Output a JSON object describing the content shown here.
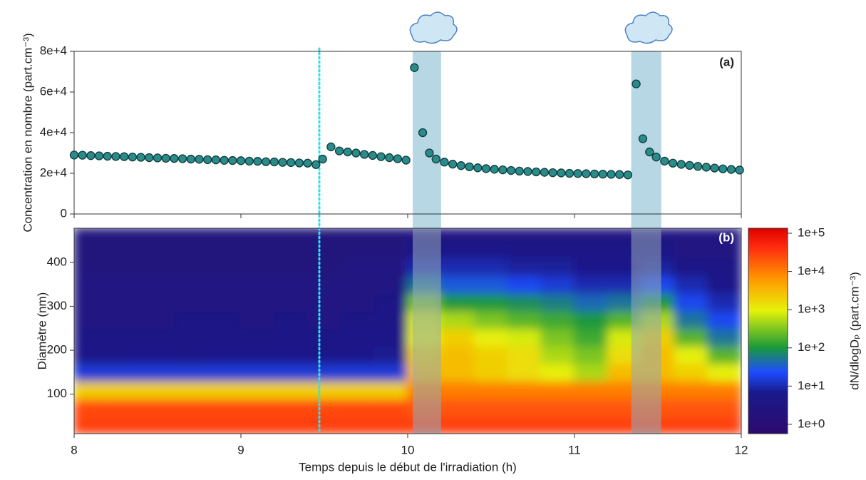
{
  "chart_data": [
    {
      "type": "scatter",
      "panel_label": "(a)",
      "ylabel": "Concentration en nombre (part.cm⁻³)",
      "xlim": [
        8,
        12
      ],
      "xticks": [
        8,
        9,
        10,
        11,
        12
      ],
      "ylim": [
        0,
        80000
      ],
      "yticks": [
        0,
        {
          "value": 20000,
          "label": "2e+4"
        },
        {
          "value": 40000,
          "label": "4e+4"
        },
        {
          "value": 60000,
          "label": "6e+4"
        },
        {
          "value": 80000,
          "label": "8e+4"
        }
      ],
      "color": "#2b8b8b",
      "x": [
        8.0,
        8.05,
        8.1,
        8.15,
        8.2,
        8.25,
        8.3,
        8.35,
        8.4,
        8.45,
        8.5,
        8.55,
        8.6,
        8.65,
        8.7,
        8.75,
        8.8,
        8.85,
        8.9,
        8.95,
        9.0,
        9.05,
        9.1,
        9.15,
        9.2,
        9.25,
        9.3,
        9.35,
        9.4,
        9.45,
        9.49,
        9.54,
        9.59,
        9.64,
        9.69,
        9.74,
        9.79,
        9.84,
        9.89,
        9.94,
        9.99,
        10.04,
        10.09,
        10.13,
        10.17,
        10.22,
        10.27,
        10.32,
        10.37,
        10.42,
        10.47,
        10.52,
        10.57,
        10.62,
        10.67,
        10.72,
        10.77,
        10.82,
        10.87,
        10.92,
        10.97,
        11.02,
        11.07,
        11.12,
        11.17,
        11.22,
        11.27,
        11.32,
        11.37,
        11.41,
        11.45,
        11.49,
        11.54,
        11.59,
        11.64,
        11.69,
        11.74,
        11.79,
        11.84,
        11.89,
        11.94,
        11.99
      ],
      "values": [
        29000,
        28900,
        28700,
        28600,
        28400,
        28300,
        28200,
        28000,
        27900,
        27700,
        27600,
        27400,
        27300,
        27200,
        27000,
        26900,
        26700,
        26600,
        26400,
        26300,
        26200,
        26000,
        25900,
        25700,
        25600,
        25400,
        25300,
        25100,
        25000,
        24300,
        27000,
        33000,
        31000,
        30500,
        30000,
        29300,
        28800,
        28200,
        27700,
        27200,
        26500,
        72000,
        40000,
        30000,
        27000,
        25500,
        24500,
        23800,
        23200,
        22700,
        22300,
        22000,
        21700,
        21400,
        21100,
        20900,
        20700,
        20500,
        20300,
        20200,
        20000,
        19900,
        19800,
        19700,
        19600,
        19500,
        19400,
        19200,
        64000,
        37000,
        30500,
        28000,
        26000,
        25000,
        24400,
        23900,
        23400,
        23000,
        22600,
        22200,
        21900,
        21600
      ],
      "vline": 9.47,
      "shaded_spans": [
        [
          10.03,
          10.2
        ],
        [
          11.34,
          11.52
        ]
      ]
    },
    {
      "type": "heatmap",
      "panel_label": "(b)",
      "xlabel": "Temps depuis le début de l'irradiation (h)",
      "ylabel": "Diamètre (nm)",
      "xlim": [
        8,
        12
      ],
      "xticks": [
        8,
        9,
        10,
        11,
        12
      ],
      "ylim": [
        10,
        478
      ],
      "yticks": [
        100,
        200,
        300,
        400
      ],
      "x_edges": [
        8.0,
        8.2,
        8.4,
        8.6,
        8.8,
        9.0,
        9.2,
        9.4,
        9.6,
        9.8,
        10.0,
        10.2,
        10.4,
        10.6,
        10.8,
        11.0,
        11.2,
        11.4,
        11.6,
        11.8,
        12.0
      ],
      "y_edges": [
        10,
        50,
        90,
        130,
        170,
        210,
        250,
        290,
        330,
        370,
        410,
        450,
        478
      ],
      "z": [
        [
          30000,
          25000,
          2000,
          15,
          5,
          4,
          3,
          3,
          3,
          2,
          2,
          2
        ],
        [
          30000,
          25000,
          2000,
          15,
          5,
          4,
          3,
          3,
          3,
          2,
          2,
          2
        ],
        [
          30000,
          25000,
          2000,
          15,
          6,
          4,
          3,
          3,
          3,
          2,
          2,
          2
        ],
        [
          30000,
          25000,
          2000,
          15,
          5,
          4,
          4,
          3,
          3,
          2,
          2,
          2
        ],
        [
          30000,
          25000,
          2000,
          15,
          6,
          5,
          4,
          3,
          3,
          2,
          2,
          2
        ],
        [
          30000,
          25000,
          2000,
          15,
          6,
          4,
          3,
          3,
          3,
          2,
          2,
          2
        ],
        [
          30000,
          25000,
          2000,
          15,
          6,
          5,
          4,
          3,
          3,
          2,
          2,
          2
        ],
        [
          30000,
          25000,
          2000,
          15,
          5,
          4,
          3,
          3,
          3,
          2,
          2,
          2
        ],
        [
          30000,
          25000,
          2000,
          15,
          6,
          5,
          4,
          3,
          3,
          3,
          2,
          2
        ],
        [
          30000,
          25000,
          2000,
          15,
          7,
          5,
          4,
          4,
          3,
          3,
          2,
          2
        ],
        [
          30000,
          20000,
          10000,
          3000,
          2000,
          1000,
          800,
          300,
          50,
          10,
          5,
          3
        ],
        [
          30000,
          20000,
          10000,
          3000,
          3000,
          2000,
          500,
          100,
          30,
          10,
          5,
          3
        ],
        [
          30000,
          20000,
          10000,
          2000,
          2000,
          1000,
          300,
          100,
          30,
          10,
          5,
          3
        ],
        [
          30000,
          20000,
          10000,
          1500,
          1500,
          800,
          200,
          80,
          20,
          8,
          4,
          3
        ],
        [
          30000,
          20000,
          10000,
          1000,
          500,
          300,
          150,
          60,
          15,
          8,
          4,
          3
        ],
        [
          30000,
          20000,
          10000,
          500,
          300,
          150,
          100,
          40,
          10,
          6,
          4,
          3
        ],
        [
          30000,
          20000,
          10000,
          3000,
          1500,
          800,
          200,
          50,
          10,
          6,
          4,
          3
        ],
        [
          30000,
          20000,
          10000,
          3000,
          3000,
          2000,
          500,
          100,
          20,
          8,
          4,
          3
        ],
        [
          30000,
          20000,
          10000,
          2000,
          1000,
          200,
          50,
          20,
          10,
          5,
          3,
          3
        ],
        [
          30000,
          20000,
          10000,
          1000,
          200,
          50,
          20,
          10,
          5,
          4,
          3,
          3
        ]
      ],
      "colorbar": {
        "label": "dN/dlogDₚ (part.cm⁻³)",
        "log": true,
        "zlim": [
          0.57,
          135000
        ],
        "ticks": [
          {
            "value": 1,
            "label": "1e+0"
          },
          {
            "value": 10,
            "label": "1e+1"
          },
          {
            "value": 100,
            "label": "1e+2"
          },
          {
            "value": 1000,
            "label": "1e+3"
          },
          {
            "value": 10000,
            "label": "1e+4"
          },
          {
            "value": 100000,
            "label": "1e+5"
          }
        ]
      }
    }
  ]
}
